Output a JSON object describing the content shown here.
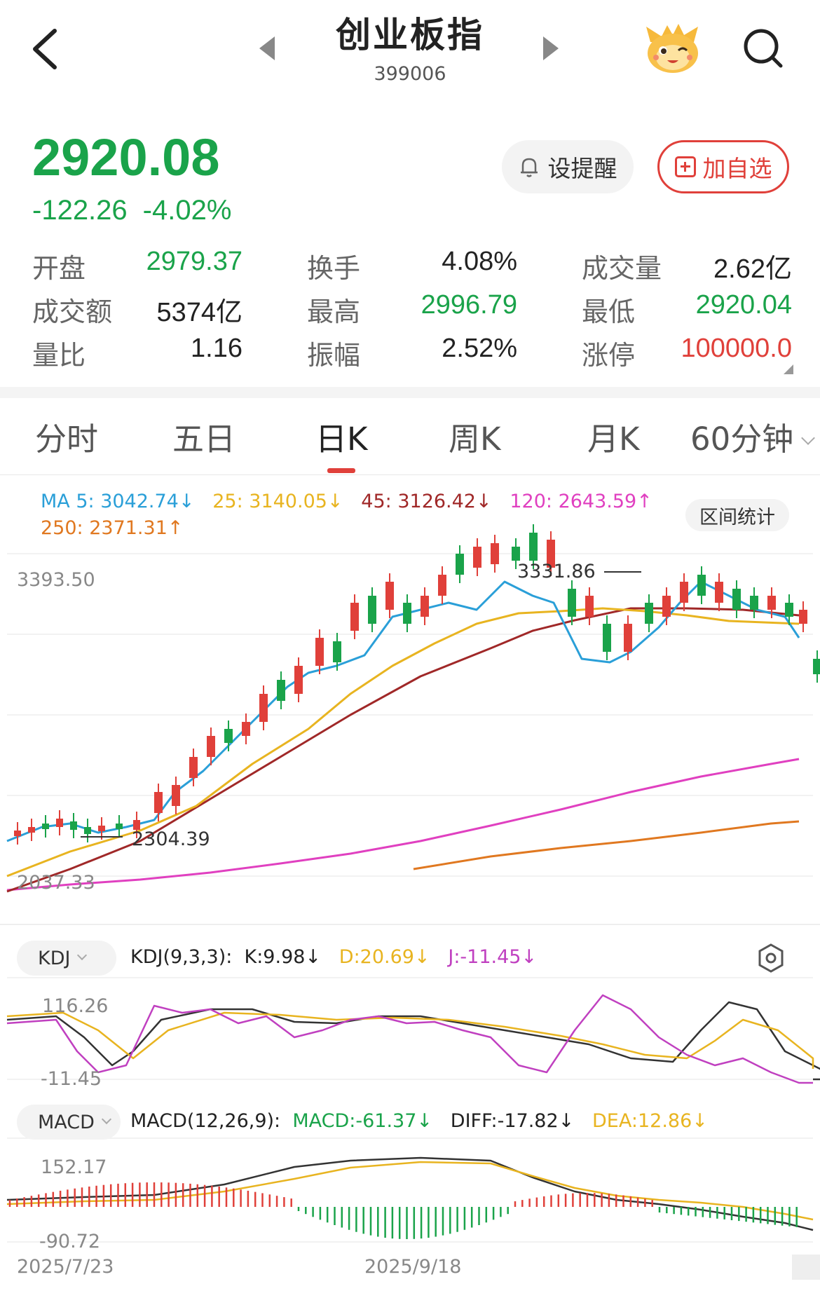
{
  "header": {
    "title": "创业板指",
    "code": "399006"
  },
  "quote": {
    "price": "2920.08",
    "change": "-122.26",
    "change_pct": "-4.02%",
    "alert_label": "设提醒",
    "fav_label": "加自选"
  },
  "stats": [
    {
      "label": "开盘",
      "value": "2979.37",
      "color": "green"
    },
    {
      "label": "换手",
      "value": "4.08%",
      "color": "normal"
    },
    {
      "label": "成交量",
      "value": "2.62亿",
      "color": "normal"
    },
    {
      "label": "成交额",
      "value": "5374亿",
      "color": "normal"
    },
    {
      "label": "最高",
      "value": "2996.79",
      "color": "green"
    },
    {
      "label": "最低",
      "value": "2920.04",
      "color": "green"
    },
    {
      "label": "量比",
      "value": "1.16",
      "color": "normal"
    },
    {
      "label": "振幅",
      "value": "2.52%",
      "color": "normal"
    },
    {
      "label": "涨停",
      "value": "100000.0",
      "color": "red"
    }
  ],
  "tabs": [
    "分时",
    "五日",
    "日K",
    "周K",
    "月K",
    "60分钟"
  ],
  "active_tab": "日K",
  "ma": {
    "ma5": "MA 5: 3042.74↓",
    "ma25": "25: 3140.05↓",
    "ma45": "45: 3126.42↓",
    "ma120": "120: 2643.59↑",
    "ma250": "250: 2371.31↑"
  },
  "range_button": "区间统计",
  "kline": {
    "axis_top": "3393.50",
    "axis_bottom": "2037.33",
    "high_marker": "3331.86",
    "low_marker": "2304.39"
  },
  "kdj": {
    "pill": "KDJ",
    "params": "KDJ(9,3,3):",
    "k": "K:9.98↓",
    "d": "D:20.69↓",
    "j": "J:-11.45↓",
    "axis_top": "116.26",
    "axis_bottom": "-11.45"
  },
  "macd": {
    "pill": "MACD",
    "params": "MACD(12,26,9):",
    "macd": "MACD:-61.37↓",
    "diff": "DIFF:-17.82↓",
    "dea": "DEA:12.86↓",
    "axis_top": "152.17",
    "axis_bottom": "-90.72"
  },
  "dates": {
    "start": "2025/7/23",
    "mid": "2025/9/18"
  },
  "colors": {
    "up": "#e0403a",
    "down": "#1aa34a",
    "ma5": "#2a9fd8",
    "ma25": "#e8b420",
    "ma45": "#a02828",
    "ma120": "#e040c0",
    "ma250": "#e07820"
  }
}
